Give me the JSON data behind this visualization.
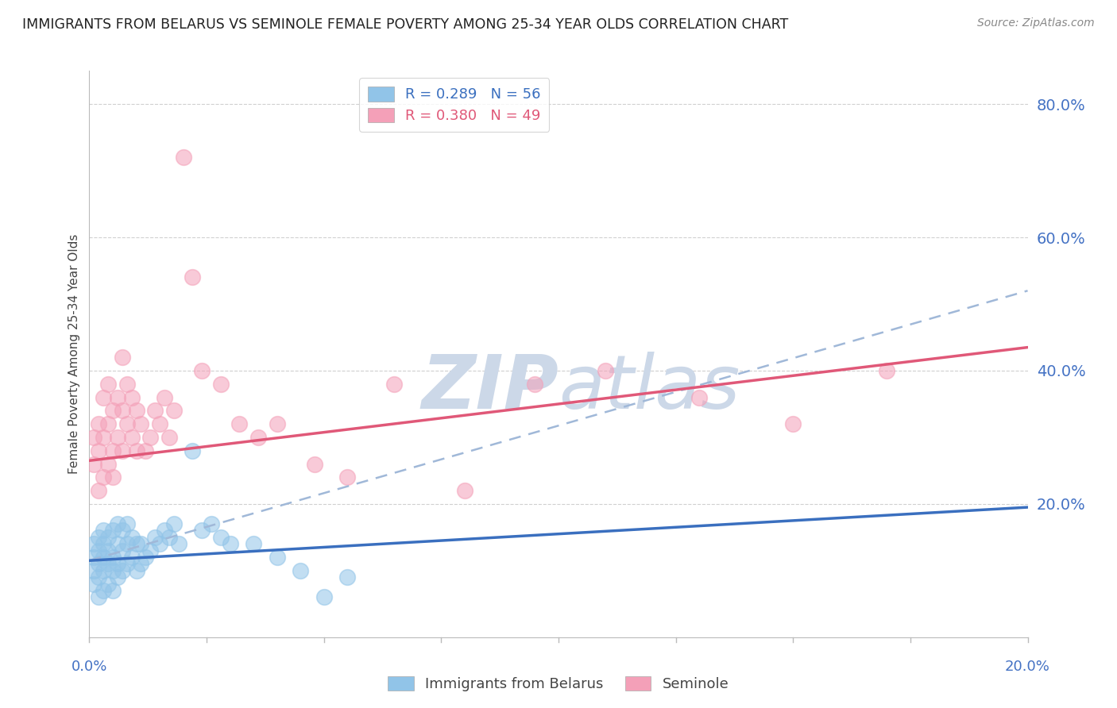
{
  "title": "IMMIGRANTS FROM BELARUS VS SEMINOLE FEMALE POVERTY AMONG 25-34 YEAR OLDS CORRELATION CHART",
  "source": "Source: ZipAtlas.com",
  "ylabel": "Female Poverty Among 25-34 Year Olds",
  "xlim": [
    0.0,
    0.2
  ],
  "ylim": [
    0.0,
    0.85
  ],
  "legend_r1": "R = 0.289",
  "legend_n1": "N = 56",
  "legend_r2": "R = 0.380",
  "legend_n2": "N = 49",
  "blue_color": "#91c4e8",
  "pink_color": "#f4a0b8",
  "blue_line_color": "#3a6fbf",
  "pink_line_color": "#e05878",
  "dashed_line_color": "#a0b8d8",
  "title_color": "#222222",
  "source_color": "#888888",
  "axis_label_color": "#444444",
  "tick_color": "#4472C4",
  "grid_color": "#d0d0d0",
  "watermark_color": "#ccd8e8",
  "blue_scatter_x": [
    0.001,
    0.001,
    0.001,
    0.001,
    0.002,
    0.002,
    0.002,
    0.002,
    0.002,
    0.003,
    0.003,
    0.003,
    0.003,
    0.003,
    0.004,
    0.004,
    0.004,
    0.004,
    0.005,
    0.005,
    0.005,
    0.005,
    0.006,
    0.006,
    0.006,
    0.006,
    0.007,
    0.007,
    0.007,
    0.008,
    0.008,
    0.008,
    0.009,
    0.009,
    0.01,
    0.01,
    0.011,
    0.011,
    0.012,
    0.013,
    0.014,
    0.015,
    0.016,
    0.017,
    0.018,
    0.019,
    0.022,
    0.024,
    0.026,
    0.028,
    0.03,
    0.035,
    0.04,
    0.045,
    0.05,
    0.055
  ],
  "blue_scatter_y": [
    0.08,
    0.1,
    0.12,
    0.14,
    0.06,
    0.09,
    0.11,
    0.13,
    0.15,
    0.07,
    0.1,
    0.12,
    0.14,
    0.16,
    0.08,
    0.11,
    0.13,
    0.15,
    0.07,
    0.1,
    0.12,
    0.16,
    0.09,
    0.11,
    0.14,
    0.17,
    0.1,
    0.13,
    0.16,
    0.11,
    0.14,
    0.17,
    0.12,
    0.15,
    0.1,
    0.14,
    0.11,
    0.14,
    0.12,
    0.13,
    0.15,
    0.14,
    0.16,
    0.15,
    0.17,
    0.14,
    0.28,
    0.16,
    0.17,
    0.15,
    0.14,
    0.14,
    0.12,
    0.1,
    0.06,
    0.09
  ],
  "pink_scatter_x": [
    0.001,
    0.001,
    0.002,
    0.002,
    0.002,
    0.003,
    0.003,
    0.003,
    0.004,
    0.004,
    0.004,
    0.005,
    0.005,
    0.005,
    0.006,
    0.006,
    0.007,
    0.007,
    0.007,
    0.008,
    0.008,
    0.009,
    0.009,
    0.01,
    0.01,
    0.011,
    0.012,
    0.013,
    0.014,
    0.015,
    0.016,
    0.017,
    0.018,
    0.02,
    0.022,
    0.024,
    0.028,
    0.032,
    0.036,
    0.04,
    0.048,
    0.055,
    0.065,
    0.08,
    0.095,
    0.11,
    0.13,
    0.15,
    0.17
  ],
  "pink_scatter_y": [
    0.26,
    0.3,
    0.22,
    0.28,
    0.32,
    0.24,
    0.3,
    0.36,
    0.26,
    0.32,
    0.38,
    0.28,
    0.34,
    0.24,
    0.3,
    0.36,
    0.28,
    0.34,
    0.42,
    0.32,
    0.38,
    0.3,
    0.36,
    0.28,
    0.34,
    0.32,
    0.28,
    0.3,
    0.34,
    0.32,
    0.36,
    0.3,
    0.34,
    0.72,
    0.54,
    0.4,
    0.38,
    0.32,
    0.3,
    0.32,
    0.26,
    0.24,
    0.38,
    0.22,
    0.38,
    0.4,
    0.36,
    0.32,
    0.4
  ],
  "blue_line_x0": 0.0,
  "blue_line_x1": 0.2,
  "blue_line_y0": 0.115,
  "blue_line_y1": 0.195,
  "pink_line_x0": 0.0,
  "pink_line_x1": 0.2,
  "pink_line_y0": 0.265,
  "pink_line_y1": 0.435,
  "dash_line_x0": 0.0,
  "dash_line_x1": 0.2,
  "dash_line_y0": 0.115,
  "dash_line_y1": 0.52
}
